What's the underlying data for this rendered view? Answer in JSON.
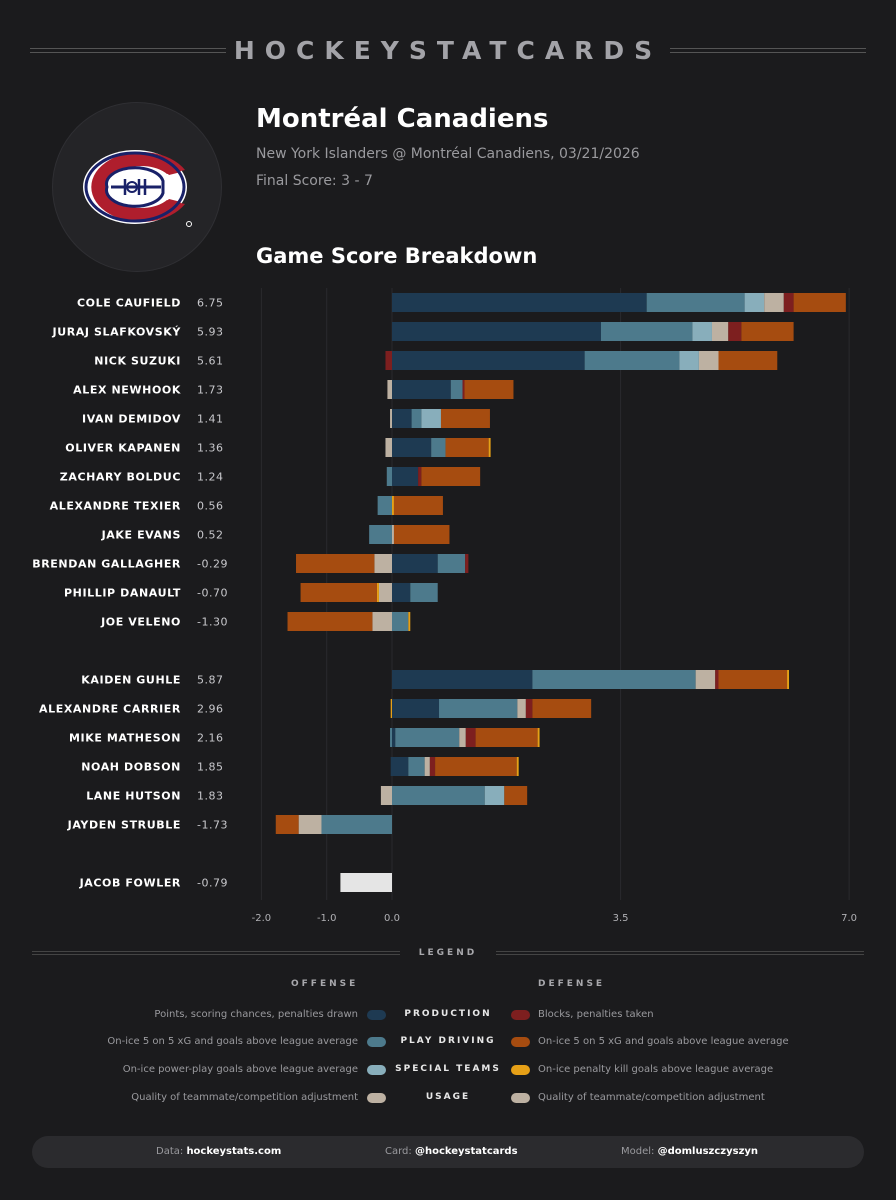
{
  "brand": "HOCKEYSTATCARDS",
  "team": "Montréal Canadiens",
  "game_line": "New York Islanders @ Montréal Canadiens, 03/21/2026",
  "final_score": "Final Score: 3 - 7",
  "chart_title": "Game Score Breakdown",
  "colors": {
    "production": "#1e3a52",
    "play_driving": "#4d7a8c",
    "special_teams": "#88aebb",
    "usage": "#bdb1a2",
    "blocks": "#7d1f1f",
    "def_play_driving": "#a64c10",
    "penalty_kill": "#e6a017",
    "goalie": "#e5e5e5"
  },
  "chart_data": {
    "type": "bar",
    "orientation": "horizontal",
    "stacked": true,
    "xlim": [
      -2.0,
      7.0
    ],
    "xticks": [
      "-2.0",
      "-1.0",
      "0.0",
      "3.5",
      "7.0"
    ],
    "grid": true,
    "groups": [
      {
        "name": "forwards",
        "players": [
          {
            "name": "COLE CAUFIELD",
            "value": "6.75",
            "neg": [],
            "pos": [
              [
                "production",
                3.9
              ],
              [
                "play_driving",
                1.5
              ],
              [
                "special_teams",
                0.3
              ],
              [
                "usage",
                0.3
              ],
              [
                "blocks",
                0.15
              ],
              [
                "def_play_driving",
                0.8
              ]
            ]
          },
          {
            "name": "JURAJ SLAFKOVSKÝ",
            "value": "5.93",
            "neg": [],
            "pos": [
              [
                "production",
                3.2
              ],
              [
                "play_driving",
                1.4
              ],
              [
                "special_teams",
                0.3
              ],
              [
                "usage",
                0.25
              ],
              [
                "blocks",
                0.2
              ],
              [
                "def_play_driving",
                0.8
              ]
            ]
          },
          {
            "name": "NICK SUZUKI",
            "value": "5.61",
            "neg": [
              [
                "blocks",
                0.1
              ]
            ],
            "pos": [
              [
                "production",
                2.95
              ],
              [
                "play_driving",
                1.45
              ],
              [
                "special_teams",
                0.3
              ],
              [
                "usage",
                0.3
              ],
              [
                "def_play_driving",
                0.9
              ]
            ]
          },
          {
            "name": "ALEX NEWHOOK",
            "value": "1.73",
            "neg": [
              [
                "usage",
                0.07
              ]
            ],
            "pos": [
              [
                "production",
                0.9
              ],
              [
                "play_driving",
                0.18
              ],
              [
                "blocks",
                0.03
              ],
              [
                "def_play_driving",
                0.75
              ]
            ]
          },
          {
            "name": "IVAN DEMIDOV",
            "value": "1.41",
            "neg": [
              [
                "usage",
                0.03
              ]
            ],
            "pos": [
              [
                "production",
                0.3
              ],
              [
                "play_driving",
                0.15
              ],
              [
                "special_teams",
                0.3
              ],
              [
                "def_play_driving",
                0.75
              ]
            ]
          },
          {
            "name": "OLIVER KAPANEN",
            "value": "1.36",
            "neg": [
              [
                "usage",
                0.1
              ]
            ],
            "pos": [
              [
                "production",
                0.6
              ],
              [
                "play_driving",
                0.22
              ],
              [
                "def_play_driving",
                0.66
              ],
              [
                "penalty_kill",
                0.03
              ]
            ]
          },
          {
            "name": "ZACHARY BOLDUC",
            "value": "1.24",
            "neg": [
              [
                "play_driving",
                0.08
              ]
            ],
            "pos": [
              [
                "production",
                0.4
              ],
              [
                "blocks",
                0.05
              ],
              [
                "def_play_driving",
                0.9
              ]
            ]
          },
          {
            "name": "ALEXANDRE TEXIER",
            "value": "0.56",
            "neg": [
              [
                "play_driving",
                0.22
              ]
            ],
            "pos": [
              [
                "penalty_kill",
                0.03
              ],
              [
                "def_play_driving",
                0.75
              ]
            ]
          },
          {
            "name": "JAKE EVANS",
            "value": "0.52",
            "neg": [
              [
                "play_driving",
                0.35
              ]
            ],
            "pos": [
              [
                "usage",
                0.03
              ],
              [
                "def_play_driving",
                0.85
              ]
            ]
          },
          {
            "name": "BRENDAN GALLAGHER",
            "value": "-0.29",
            "neg": [
              [
                "usage",
                0.27
              ],
              [
                "def_play_driving",
                1.2
              ]
            ],
            "pos": [
              [
                "production",
                0.7
              ],
              [
                "play_driving",
                0.42
              ],
              [
                "blocks",
                0.05
              ]
            ]
          },
          {
            "name": "PHILLIP DANAULT",
            "value": "-0.70",
            "neg": [
              [
                "usage",
                0.2
              ],
              [
                "penalty_kill",
                0.03
              ],
              [
                "def_play_driving",
                1.17
              ]
            ],
            "pos": [
              [
                "production",
                0.28
              ],
              [
                "play_driving",
                0.42
              ]
            ]
          },
          {
            "name": "JOE VELENO",
            "value": "-1.30",
            "neg": [
              [
                "usage",
                0.3
              ],
              [
                "def_play_driving",
                1.3
              ]
            ],
            "pos": [
              [
                "play_driving",
                0.25
              ],
              [
                "penalty_kill",
                0.03
              ]
            ]
          }
        ]
      },
      {
        "name": "defense",
        "players": [
          {
            "name": "KAIDEN GUHLE",
            "value": "5.87",
            "neg": [],
            "pos": [
              [
                "production",
                2.15
              ],
              [
                "play_driving",
                2.5
              ],
              [
                "usage",
                0.3
              ],
              [
                "blocks",
                0.05
              ],
              [
                "def_play_driving",
                1.05
              ],
              [
                "penalty_kill",
                0.03
              ]
            ]
          },
          {
            "name": "ALEXANDRE CARRIER",
            "value": "2.96",
            "neg": [
              [
                "penalty_kill",
                0.02
              ]
            ],
            "pos": [
              [
                "production",
                0.72
              ],
              [
                "play_driving",
                1.2
              ],
              [
                "usage",
                0.13
              ],
              [
                "blocks",
                0.1
              ],
              [
                "def_play_driving",
                0.9
              ]
            ]
          },
          {
            "name": "MIKE MATHESON",
            "value": "2.16",
            "neg": [
              [
                "play_driving",
                0.03
              ]
            ],
            "pos": [
              [
                "production",
                0.05
              ],
              [
                "play_driving",
                0.98
              ],
              [
                "usage",
                0.1
              ],
              [
                "blocks",
                0.15
              ],
              [
                "def_play_driving",
                0.95
              ],
              [
                "penalty_kill",
                0.03
              ]
            ]
          },
          {
            "name": "NOAH DOBSON",
            "value": "1.85",
            "neg": [
              [
                "production",
                0.02
              ]
            ],
            "pos": [
              [
                "production",
                0.25
              ],
              [
                "play_driving",
                0.25
              ],
              [
                "usage",
                0.08
              ],
              [
                "blocks",
                0.08
              ],
              [
                "def_play_driving",
                1.25
              ],
              [
                "penalty_kill",
                0.03
              ]
            ]
          },
          {
            "name": "LANE HUTSON",
            "value": "1.83",
            "neg": [
              [
                "usage",
                0.17
              ]
            ],
            "pos": [
              [
                "play_driving",
                1.42
              ],
              [
                "special_teams",
                0.3
              ],
              [
                "def_play_driving",
                0.35
              ]
            ]
          },
          {
            "name": "JAYDEN STRUBLE",
            "value": "-1.73",
            "neg": [
              [
                "play_driving",
                1.08
              ],
              [
                "usage",
                0.35
              ],
              [
                "def_play_driving",
                0.35
              ]
            ],
            "pos": []
          }
        ]
      },
      {
        "name": "goalies",
        "players": [
          {
            "name": "JACOB FOWLER",
            "value": "-0.79",
            "neg": [
              [
                "goalie",
                0.79
              ]
            ],
            "pos": []
          }
        ]
      }
    ]
  },
  "legend": {
    "title": "LEGEND",
    "offense_head": "OFFENSE",
    "defense_head": "DEFENSE",
    "rows": [
      {
        "left": "Points, scoring chances, penalties drawn",
        "left_key": "production",
        "mid": "PRODUCTION",
        "right": "Blocks, penalties taken",
        "right_key": "blocks"
      },
      {
        "left": "On-ice 5 on 5 xG and goals above league average",
        "left_key": "play_driving",
        "mid": "PLAY DRIVING",
        "right": "On-ice 5 on 5 xG and goals above league average",
        "right_key": "def_play_driving"
      },
      {
        "left": "On-ice power-play goals above league average",
        "left_key": "special_teams",
        "mid": "SPECIAL TEAMS",
        "right": "On-ice penalty kill goals above league average",
        "right_key": "penalty_kill"
      },
      {
        "left": "Quality of teammate/competition adjustment",
        "left_key": "usage",
        "mid": "USAGE",
        "right": "Quality of teammate/competition adjustment",
        "right_key": "usage"
      }
    ]
  },
  "footer": {
    "data_label": "Data:",
    "data_value": "hockeystats.com",
    "card_label": "Card:",
    "card_value": "@hockeystatcards",
    "model_label": "Model:",
    "model_value": "@domluszczyszyn"
  }
}
